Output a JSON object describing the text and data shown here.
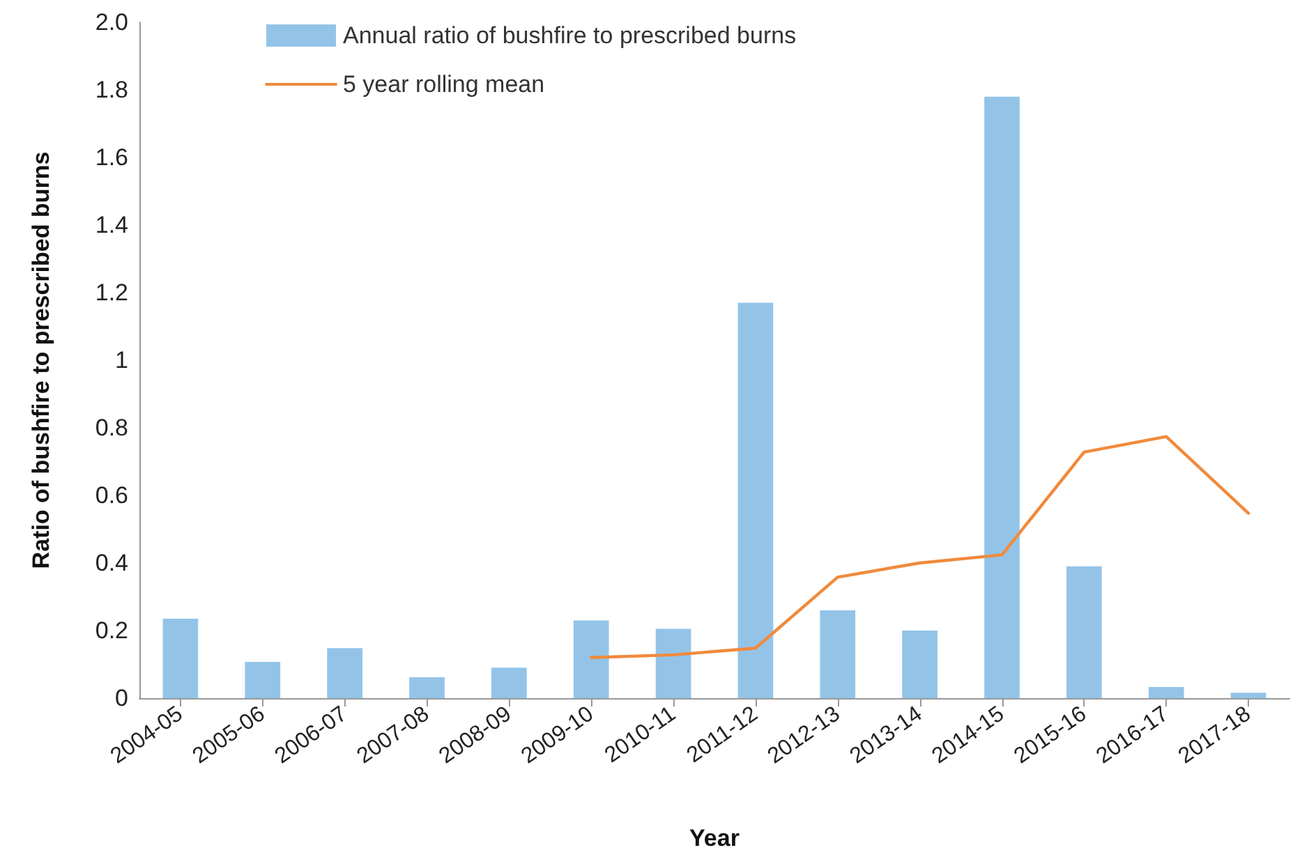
{
  "chart_data": {
    "type": "bar",
    "xlabel": "Year",
    "ylabel": "Ratio of bushfire to prescribed burns",
    "categories": [
      "2004-05",
      "2005-06",
      "2006-07",
      "2007-08",
      "2008-09",
      "2009-10",
      "2010-11",
      "2011-12",
      "2012-13",
      "2013-14",
      "2014-15",
      "2015-16",
      "2016-17",
      "2017-18"
    ],
    "series": [
      {
        "name": "Annual ratio of bushfire to prescribed burns",
        "color": "#93c4e8",
        "values": [
          0.235,
          0.107,
          0.148,
          0.062,
          0.09,
          0.23,
          0.205,
          1.17,
          0.26,
          0.2,
          1.78,
          0.39,
          0.033,
          0.016
        ]
      },
      {
        "name": "5 year rolling mean",
        "type": "line",
        "color": "#f08a3c",
        "values": [
          null,
          null,
          null,
          null,
          null,
          0.12,
          0.128,
          0.148,
          0.358,
          0.4,
          0.424,
          0.728,
          0.774,
          0.547
        ]
      }
    ],
    "ylim": [
      0,
      2
    ],
    "yticks": [
      0,
      0.2,
      0.4,
      0.6,
      0.8,
      1,
      1.2,
      1.4,
      1.6,
      1.8,
      {
        "value": 2,
        "label": "2.0"
      }
    ],
    "grid": false,
    "legend": "top",
    "marker": "none",
    "line_style": "solid"
  }
}
